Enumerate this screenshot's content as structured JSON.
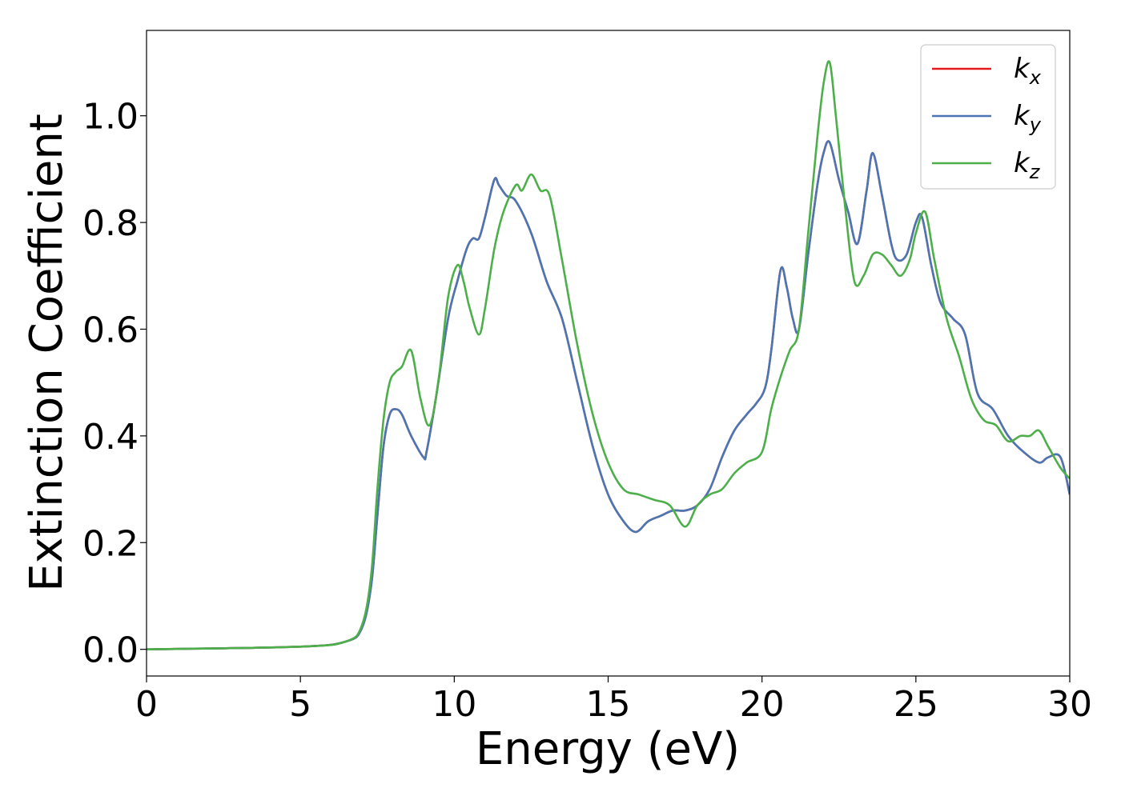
{
  "chart_data": {
    "type": "line",
    "xlabel": "Energy (eV)",
    "ylabel": "Extinction Coefficient",
    "xlim": [
      0,
      30
    ],
    "ylim": [
      -0.05,
      1.16
    ],
    "x_ticks": [
      "0",
      "5",
      "10",
      "15",
      "20",
      "25",
      "30"
    ],
    "y_ticks": [
      "0.0",
      "0.2",
      "0.4",
      "0.6",
      "0.8",
      "1.0"
    ],
    "legend_position": "top-right",
    "grid": false,
    "series": [
      {
        "name": "kx",
        "legend_base": "k",
        "legend_sub": "x",
        "color": "#e41a1c",
        "x": [
          0,
          5,
          6.5,
          7.0,
          7.3,
          7.5,
          7.7,
          7.9,
          8.1,
          8.3,
          8.6,
          9.0,
          9.1,
          9.4,
          9.8,
          10.1,
          10.4,
          10.6,
          10.8,
          11.0,
          11.3,
          11.45,
          11.7,
          12.0,
          12.5,
          13.0,
          13.5,
          14.0,
          14.5,
          15.0,
          15.5,
          15.9,
          16.3,
          16.7,
          17.1,
          17.5,
          17.9,
          18.3,
          18.7,
          19.1,
          19.5,
          19.8,
          20.1,
          20.3,
          20.6,
          20.8,
          21.0,
          21.2,
          21.5,
          21.8,
          22.0,
          22.2,
          22.5,
          22.8,
          23.1,
          23.4,
          23.6,
          23.9,
          24.2,
          24.4,
          24.7,
          25.0,
          25.2,
          25.5,
          25.8,
          26.2,
          26.6,
          27.0,
          27.5,
          28.0,
          28.5,
          29.0,
          29.3,
          29.7,
          30.0
        ],
        "y": [
          0.0,
          0.005,
          0.015,
          0.04,
          0.12,
          0.25,
          0.38,
          0.44,
          0.45,
          0.44,
          0.4,
          0.36,
          0.37,
          0.47,
          0.62,
          0.69,
          0.75,
          0.77,
          0.77,
          0.81,
          0.88,
          0.87,
          0.85,
          0.84,
          0.78,
          0.69,
          0.62,
          0.5,
          0.38,
          0.29,
          0.24,
          0.22,
          0.24,
          0.25,
          0.26,
          0.26,
          0.27,
          0.3,
          0.36,
          0.41,
          0.44,
          0.46,
          0.49,
          0.56,
          0.71,
          0.68,
          0.62,
          0.6,
          0.74,
          0.87,
          0.93,
          0.95,
          0.88,
          0.82,
          0.76,
          0.86,
          0.93,
          0.85,
          0.76,
          0.73,
          0.74,
          0.8,
          0.81,
          0.72,
          0.65,
          0.62,
          0.59,
          0.48,
          0.45,
          0.4,
          0.37,
          0.35,
          0.36,
          0.36,
          0.29
        ]
      },
      {
        "name": "ky",
        "legend_base": "k",
        "legend_sub": "y",
        "color": "#4a77b4",
        "x": [
          0,
          5,
          6.5,
          7.0,
          7.3,
          7.5,
          7.7,
          7.9,
          8.1,
          8.3,
          8.6,
          9.0,
          9.1,
          9.4,
          9.8,
          10.1,
          10.4,
          10.6,
          10.8,
          11.0,
          11.3,
          11.45,
          11.7,
          12.0,
          12.5,
          13.0,
          13.5,
          14.0,
          14.5,
          15.0,
          15.5,
          15.9,
          16.3,
          16.7,
          17.1,
          17.5,
          17.9,
          18.3,
          18.7,
          19.1,
          19.5,
          19.8,
          20.1,
          20.3,
          20.6,
          20.8,
          21.0,
          21.2,
          21.5,
          21.8,
          22.0,
          22.2,
          22.5,
          22.8,
          23.1,
          23.4,
          23.6,
          23.9,
          24.2,
          24.4,
          24.7,
          25.0,
          25.2,
          25.5,
          25.8,
          26.2,
          26.6,
          27.0,
          27.5,
          28.0,
          28.5,
          29.0,
          29.3,
          29.7,
          30.0
        ],
        "y": [
          0.0,
          0.005,
          0.015,
          0.04,
          0.12,
          0.25,
          0.38,
          0.44,
          0.45,
          0.44,
          0.4,
          0.36,
          0.37,
          0.47,
          0.62,
          0.69,
          0.75,
          0.77,
          0.77,
          0.81,
          0.88,
          0.87,
          0.85,
          0.84,
          0.78,
          0.69,
          0.62,
          0.5,
          0.38,
          0.29,
          0.24,
          0.22,
          0.24,
          0.25,
          0.26,
          0.26,
          0.27,
          0.3,
          0.36,
          0.41,
          0.44,
          0.46,
          0.49,
          0.56,
          0.71,
          0.68,
          0.62,
          0.6,
          0.74,
          0.87,
          0.93,
          0.95,
          0.88,
          0.82,
          0.76,
          0.86,
          0.93,
          0.85,
          0.76,
          0.73,
          0.74,
          0.8,
          0.81,
          0.72,
          0.65,
          0.62,
          0.59,
          0.48,
          0.45,
          0.4,
          0.37,
          0.35,
          0.36,
          0.36,
          0.29
        ]
      },
      {
        "name": "kz",
        "legend_base": "k",
        "legend_sub": "z",
        "color": "#4daf4a",
        "x": [
          0,
          5,
          6.5,
          7.0,
          7.3,
          7.5,
          7.7,
          7.9,
          8.1,
          8.3,
          8.6,
          8.9,
          9.2,
          9.5,
          9.8,
          10.1,
          10.3,
          10.5,
          10.8,
          11.0,
          11.3,
          11.6,
          12.0,
          12.2,
          12.5,
          12.8,
          13.1,
          13.5,
          14.0,
          14.5,
          15.0,
          15.5,
          16.0,
          16.5,
          17.0,
          17.5,
          17.9,
          18.3,
          18.7,
          19.1,
          19.5,
          20.0,
          20.3,
          20.6,
          20.9,
          21.2,
          21.5,
          21.8,
          22.0,
          22.2,
          22.4,
          22.7,
          23.0,
          23.3,
          23.6,
          23.9,
          24.2,
          24.5,
          24.8,
          25.0,
          25.3,
          25.6,
          26.0,
          26.4,
          26.8,
          27.2,
          27.6,
          28.0,
          28.4,
          28.7,
          29.0,
          29.3,
          29.7,
          30.0
        ],
        "y": [
          0.0,
          0.005,
          0.015,
          0.045,
          0.14,
          0.3,
          0.43,
          0.5,
          0.52,
          0.53,
          0.56,
          0.47,
          0.42,
          0.51,
          0.66,
          0.72,
          0.69,
          0.64,
          0.59,
          0.64,
          0.75,
          0.82,
          0.87,
          0.86,
          0.89,
          0.86,
          0.85,
          0.73,
          0.57,
          0.44,
          0.35,
          0.3,
          0.29,
          0.28,
          0.27,
          0.23,
          0.27,
          0.29,
          0.3,
          0.33,
          0.35,
          0.37,
          0.45,
          0.51,
          0.56,
          0.6,
          0.78,
          0.96,
          1.06,
          1.1,
          1.0,
          0.83,
          0.69,
          0.7,
          0.74,
          0.74,
          0.72,
          0.7,
          0.73,
          0.78,
          0.82,
          0.73,
          0.62,
          0.55,
          0.47,
          0.43,
          0.42,
          0.39,
          0.4,
          0.4,
          0.41,
          0.38,
          0.34,
          0.32
        ]
      }
    ]
  }
}
